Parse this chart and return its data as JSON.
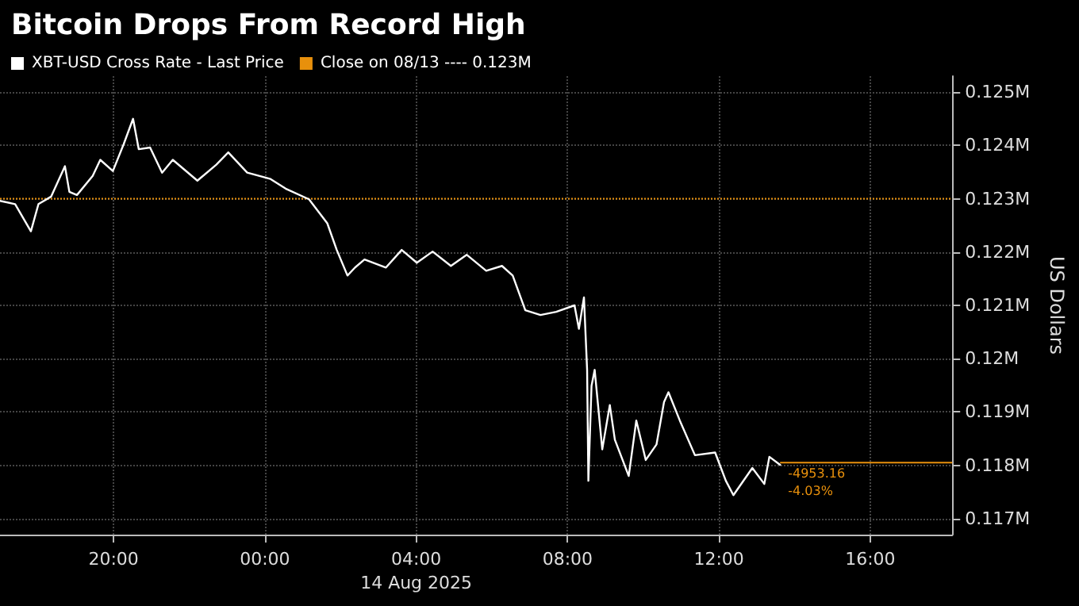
{
  "chart_data": {
    "type": "line",
    "title": "Bitcoin Drops From Record High",
    "ylabel": "US Dollars",
    "x": [
      "2025-08-13T17:00",
      "2025-08-13T17:24",
      "2025-08-13T17:49",
      "2025-08-13T18:01",
      "2025-08-13T18:21",
      "2025-08-13T18:43",
      "2025-08-13T18:50",
      "2025-08-13T19:02",
      "2025-08-13T19:27",
      "2025-08-13T19:39",
      "2025-08-13T19:59",
      "2025-08-13T20:16",
      "2025-08-13T20:31",
      "2025-08-13T20:40",
      "2025-08-13T20:58",
      "2025-08-13T21:17",
      "2025-08-13T21:34",
      "2025-08-13T22:13",
      "2025-08-13T22:43",
      "2025-08-13T23:02",
      "2025-08-13T23:32",
      "2025-08-14T00:09",
      "2025-08-14T00:33",
      "2025-08-14T01:10",
      "2025-08-14T01:39",
      "2025-08-14T01:54",
      "2025-08-14T02:11",
      "2025-08-14T02:23",
      "2025-08-14T02:38",
      "2025-08-14T03:12",
      "2025-08-14T03:37",
      "2025-08-14T04:01",
      "2025-08-14T04:26",
      "2025-08-14T04:55",
      "2025-08-14T05:20",
      "2025-08-14T05:51",
      "2025-08-14T06:16",
      "2025-08-14T06:33",
      "2025-08-14T06:53",
      "2025-08-14T07:17",
      "2025-08-14T07:42",
      "2025-08-14T08:11",
      "2025-08-14T08:18",
      "2025-08-14T08:26",
      "2025-08-14T08:31",
      "2025-08-14T08:33",
      "2025-08-14T08:38",
      "2025-08-14T08:43",
      "2025-08-14T08:55",
      "2025-08-14T09:07",
      "2025-08-14T09:15",
      "2025-08-14T09:37",
      "2025-08-14T09:49",
      "2025-08-14T10:04",
      "2025-08-14T10:21",
      "2025-08-14T10:33",
      "2025-08-14T10:40",
      "2025-08-14T10:58",
      "2025-08-14T11:22",
      "2025-08-14T11:54",
      "2025-08-14T12:11",
      "2025-08-14T12:23",
      "2025-08-14T12:53",
      "2025-08-14T13:12",
      "2025-08-14T13:20",
      "2025-08-14T13:37"
    ],
    "series": [
      {
        "name": "XBT-USD Cross Rate - Last Price",
        "color": "#ffffff",
        "values": [
          0.12296,
          0.1229,
          0.12239,
          0.1229,
          0.12304,
          0.12361,
          0.12313,
          0.12307,
          0.12343,
          0.12373,
          0.12352,
          0.12402,
          0.1245,
          0.12393,
          0.12396,
          0.12349,
          0.12373,
          0.12334,
          0.12364,
          0.12387,
          0.12349,
          0.12337,
          0.12319,
          0.12299,
          0.12254,
          0.12204,
          0.12156,
          0.12171,
          0.12186,
          0.12171,
          0.12204,
          0.1218,
          0.12201,
          0.12174,
          0.12195,
          0.12165,
          0.12174,
          0.12156,
          0.12091,
          0.12082,
          0.12088,
          0.121,
          0.12056,
          0.12115,
          0.11979,
          0.11771,
          0.11949,
          0.11979,
          0.1183,
          0.11913,
          0.11848,
          0.1178,
          0.11884,
          0.1181,
          0.11839,
          0.11919,
          0.11937,
          0.11884,
          0.11819,
          0.11824,
          0.11771,
          0.11744,
          0.11795,
          0.11765,
          0.11816,
          0.11801
        ]
      }
    ],
    "ref_lines": [
      {
        "axis": "y",
        "value": 0.123,
        "label": "Close on 08/13 ---- 0.123M",
        "color": "#e8900c",
        "line_style": "dotted"
      },
      {
        "axis": "y",
        "value": 0.11805,
        "label": null,
        "color": "#e8900c",
        "line_style": "solid"
      }
    ],
    "annotations": [
      {
        "text": "-4953.16",
        "x": "2025-08-14T13:37",
        "y": 0.11805
      },
      {
        "text": "-4.03%",
        "x": "2025-08-14T13:37",
        "y": 0.11805
      }
    ],
    "xlim": [
      "2025-08-13T17:00",
      "2025-08-14T18:10"
    ],
    "xticks": [
      {
        "value": "2025-08-13T20:00",
        "label": "20:00"
      },
      {
        "value": "2025-08-14T00:00",
        "label": "00:00"
      },
      {
        "value": "2025-08-14T04:00",
        "label": "04:00\n14 Aug 2025"
      },
      {
        "value": "2025-08-14T08:00",
        "label": "08:00"
      },
      {
        "value": "2025-08-14T12:00",
        "label": "12:00"
      },
      {
        "value": "2025-08-14T16:00",
        "label": "16:00"
      }
    ],
    "ylim": [
      0.1167,
      0.1253
    ],
    "yticks": [
      {
        "value": 0.117,
        "label": "0.117M"
      },
      {
        "value": 0.118,
        "label": "0.118M"
      },
      {
        "value": 0.119,
        "label": "0.119M"
      },
      {
        "value": 0.12,
        "label": "0.12M"
      },
      {
        "value": 0.121,
        "label": "0.121M"
      },
      {
        "value": 0.122,
        "label": "0.122M"
      },
      {
        "value": 0.123,
        "label": "0.123M"
      },
      {
        "value": 0.124,
        "label": "0.124M"
      },
      {
        "value": 0.125,
        "label": "0.125M"
      }
    ],
    "grid": true,
    "legend": "top left",
    "marker": "none",
    "line_style": "solid"
  }
}
